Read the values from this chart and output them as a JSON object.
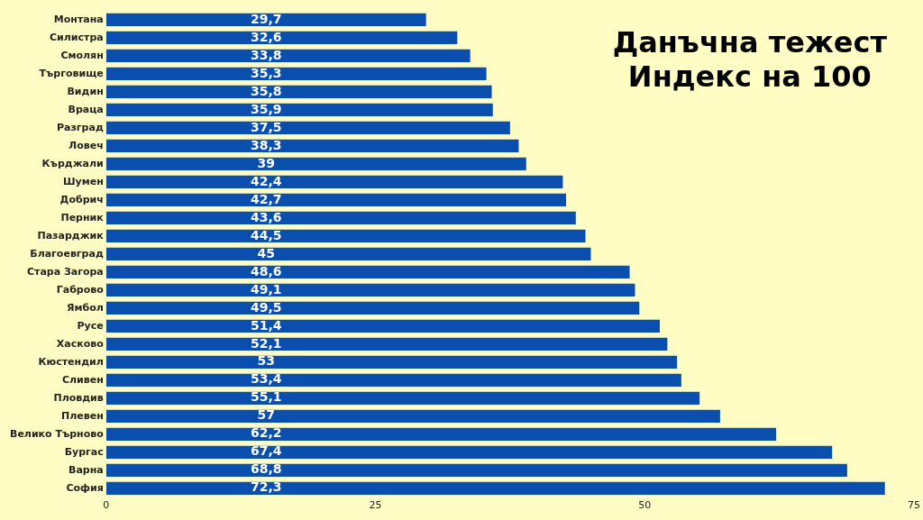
{
  "chart_data": {
    "type": "bar",
    "orientation": "horizontal",
    "title": "Данъчна тежест",
    "subtitle": "Индекс на 100",
    "categories": [
      "Монтана",
      "Силистра",
      "Смолян",
      "Търговище",
      "Видин",
      "Враца",
      "Разград",
      "Ловеч",
      "Кърджали",
      "Шумен",
      "Добрич",
      "Перник",
      "Пазарджик",
      "Благоевград",
      "Стара Загора",
      "Габрово",
      "Ямбол",
      "Русе",
      "Хасково",
      "Кюстендил",
      "Сливен",
      "Пловдив",
      "Плевен",
      "Велико Търново",
      "Бургас",
      "Варна",
      "София"
    ],
    "values": [
      29.7,
      32.6,
      33.8,
      35.3,
      35.8,
      35.9,
      37.5,
      38.3,
      39,
      42.4,
      42.7,
      43.6,
      44.5,
      45,
      48.6,
      49.1,
      49.5,
      51.4,
      52.1,
      53,
      53.4,
      55.1,
      57,
      62.2,
      67.4,
      68.8,
      72.3
    ],
    "value_labels": [
      "29,7",
      "32,6",
      "33,8",
      "35,3",
      "35,8",
      "35,9",
      "37,5",
      "38,3",
      "39",
      "42,4",
      "42,7",
      "43,6",
      "44,5",
      "45",
      "48,6",
      "49,1",
      "49,5",
      "51,4",
      "52,1",
      "53",
      "53,4",
      "55,1",
      "57",
      "62,2",
      "67,4",
      "68,8",
      "72,3"
    ],
    "color": "#0b4fae",
    "xlim": [
      0,
      75
    ],
    "xticks": [
      0,
      25,
      50,
      75
    ],
    "grid": false,
    "legend": false
  }
}
